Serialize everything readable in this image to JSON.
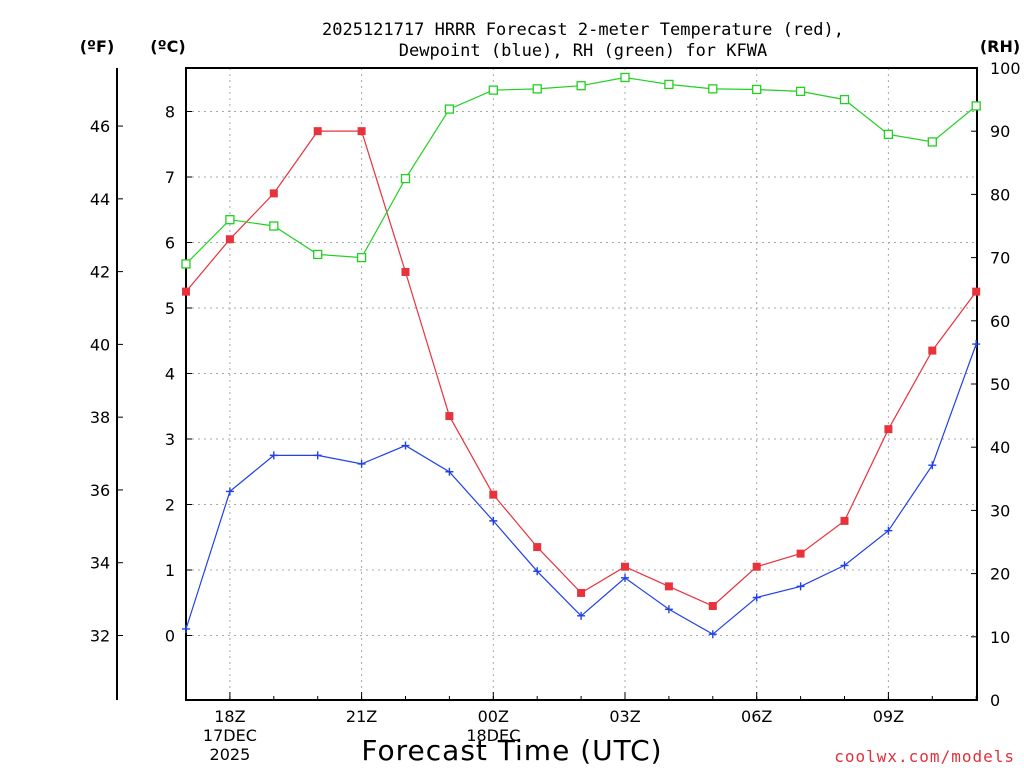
{
  "chart_data": {
    "type": "line",
    "title_line1": "2025121717 HRRR Forecast 2-meter Temperature (red),",
    "title_line2": "Dewpoint (blue), RH (green) for KFWA",
    "xlabel": "Forecast Time (UTC)",
    "credit": "coolwx.com/models",
    "unit_left_f": "(ºF)",
    "unit_left_c": "(ºC)",
    "unit_right": "(RH)",
    "x_hours": [
      17,
      18,
      19,
      20,
      21,
      22,
      23,
      24,
      25,
      26,
      27,
      28,
      29,
      30,
      31,
      32,
      33,
      34,
      35
    ],
    "x_ticks": [
      {
        "hour": 18,
        "lines": [
          "18Z",
          "17DEC",
          "2025"
        ]
      },
      {
        "hour": 21,
        "lines": [
          "21Z"
        ]
      },
      {
        "hour": 24,
        "lines": [
          "00Z",
          "18DEC"
        ]
      },
      {
        "hour": 27,
        "lines": [
          "03Z"
        ]
      },
      {
        "hour": 30,
        "lines": [
          "06Z"
        ]
      },
      {
        "hour": 33,
        "lines": [
          "09Z"
        ]
      }
    ],
    "celsius_axis": {
      "min": -1,
      "max": 8.65,
      "ticks": [
        0,
        1,
        2,
        3,
        4,
        5,
        6,
        7,
        8
      ]
    },
    "fahrenheit_ticks": [
      32,
      34,
      36,
      38,
      40,
      42,
      44,
      46
    ],
    "rh_axis": {
      "min": 0,
      "max": 100,
      "ticks": [
        0,
        10,
        20,
        30,
        40,
        50,
        60,
        70,
        80,
        90,
        100
      ]
    },
    "series": [
      {
        "name": "Temperature",
        "color": "#e8323c",
        "marker": "filled-square",
        "axis": "celsius",
        "values": [
          5.25,
          6.05,
          6.75,
          7.7,
          7.7,
          5.55,
          3.35,
          2.15,
          1.35,
          0.65,
          1.05,
          0.75,
          0.45,
          1.05,
          1.25,
          1.75,
          3.15,
          4.35,
          5.25
        ]
      },
      {
        "name": "Dewpoint",
        "color": "#2040e8",
        "marker": "plus",
        "axis": "celsius",
        "values": [
          0.1,
          2.2,
          2.75,
          2.75,
          2.62,
          2.9,
          2.5,
          1.75,
          0.98,
          0.3,
          0.88,
          0.4,
          0.02,
          0.58,
          0.75,
          1.07,
          1.6,
          2.6,
          4.45
        ]
      },
      {
        "name": "RH",
        "color": "#22d022",
        "marker": "open-square",
        "axis": "rh",
        "values": [
          69,
          76,
          75,
          70.5,
          70,
          82.5,
          93.5,
          96.5,
          96.7,
          97.2,
          98.5,
          97.4,
          96.7,
          96.6,
          96.3,
          95,
          89.5,
          88.3,
          94
        ]
      }
    ]
  }
}
